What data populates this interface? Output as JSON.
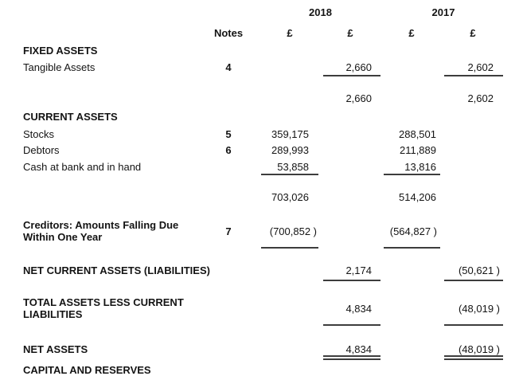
{
  "header": {
    "year_2018": "2018",
    "year_2017": "2017",
    "notes_label": "Notes",
    "currency_symbol": "£"
  },
  "rows": {
    "fixed_assets_heading": "FIXED ASSETS",
    "tangible_assets": {
      "label": "Tangible Assets",
      "note": "4",
      "y2018": "2,660",
      "y2017": "2,602"
    },
    "fixed_assets_total": {
      "y2018": "2,660",
      "y2017": "2,602"
    },
    "current_assets_heading": "CURRENT ASSETS",
    "stocks": {
      "label": "Stocks",
      "note": "5",
      "y2018": "359,175",
      "y2017": "288,501"
    },
    "debtors": {
      "label": "Debtors",
      "note": "6",
      "y2018": "289,993",
      "y2017": "211,889"
    },
    "cash_at_bank": {
      "label": "Cash at bank and in hand",
      "y2018": "53,858",
      "y2017": "13,816"
    },
    "current_assets_total": {
      "y2018": "703,026",
      "y2017": "514,206"
    },
    "creditors": {
      "label_line1": "Creditors: Amounts Falling Due",
      "label_line2": "Within One Year",
      "note": "7",
      "y2018": "(700,852 )",
      "y2017": "(564,827 )"
    },
    "net_current_assets": {
      "label": "NET CURRENT ASSETS (LIABILITIES)",
      "y2018": "2,174",
      "y2017": "(50,621 )"
    },
    "total_assets_less_current_liabilities": {
      "label_line1": "TOTAL ASSETS LESS CURRENT",
      "label_line2": "LIABILITIES",
      "y2018": "4,834",
      "y2017": "(48,019 )"
    },
    "net_assets": {
      "label": "NET ASSETS",
      "y2018": "4,834",
      "y2017": "(48,019 )"
    },
    "capital_and_reserves_heading": "CAPITAL AND RESERVES"
  },
  "colors": {
    "text": "#141414",
    "rule": "#3d3d3d",
    "background": "#ffffff"
  }
}
